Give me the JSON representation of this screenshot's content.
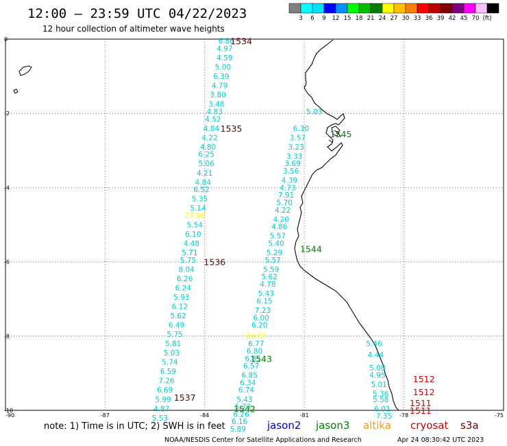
{
  "header": {
    "title": "12:00 – 23:59 UTC 04/22/2023",
    "subtitle": "12 hour collection of altimeter wave heights"
  },
  "scale": {
    "colors": [
      "#808080",
      "#00ffff",
      "#00e0ff",
      "#0000ff",
      "#0090ff",
      "#00ff00",
      "#00c000",
      "#008000",
      "#ffff00",
      "#ffc000",
      "#ff8000",
      "#ff0000",
      "#c00000",
      "#800000",
      "#800080",
      "#ff00ff",
      "#ffc0ff",
      "#000000"
    ],
    "labels": [
      "3",
      "6",
      "9",
      "12",
      "15",
      "18",
      "21",
      "24",
      "27",
      "30",
      "33",
      "36",
      "39",
      "42",
      "45",
      "70",
      "(ft)"
    ]
  },
  "axes": {
    "lat_labels": [
      "0",
      "-2",
      "-4",
      "-6",
      "-8",
      "-10"
    ],
    "lon_labels": [
      "-90",
      "-87",
      "-84",
      "-81",
      "-78",
      "-75"
    ]
  },
  "colors": {
    "jason2": "#0000cc",
    "jason3": "#008000",
    "altika": "#ff9900",
    "cryosat": "#cc0000",
    "s3a": "#660000",
    "normal_swh": "#00cccc",
    "high_swh": "#ffff00"
  },
  "passes": [
    {
      "label": "1534",
      "sat": "s3a",
      "lon": -82.9,
      "lat": -0.05
    },
    {
      "label": "1535",
      "sat": "s3a",
      "lon": -83.2,
      "lat": -2.4
    },
    {
      "label": "1536",
      "sat": "s3a",
      "lon": -83.7,
      "lat": -6.0
    },
    {
      "label": "1537",
      "sat": "s3a",
      "lon": -84.6,
      "lat": -9.65
    },
    {
      "label": "1545",
      "sat": "jason3",
      "lon": -79.9,
      "lat": -2.55
    },
    {
      "label": "1544",
      "sat": "jason3",
      "lon": -80.8,
      "lat": -5.65
    },
    {
      "label": "1543",
      "sat": "jason3",
      "lon": -82.3,
      "lat": -8.6
    },
    {
      "label": "1542",
      "sat": "jason3",
      "lon": -82.8,
      "lat": -9.95
    },
    {
      "label": "1512",
      "sat": "cryosat",
      "lon": -77.4,
      "lat": -9.15
    },
    {
      "label": "1512",
      "sat": "cryosat",
      "lon": -77.4,
      "lat": -9.5
    },
    {
      "label": "1511",
      "sat": "cryosat",
      "lon": -77.5,
      "lat": -9.8
    },
    {
      "label": "1511",
      "sat": "cryosat",
      "lon": -77.5,
      "lat": -10.0
    }
  ],
  "observations": [
    {
      "v": "6.86",
      "lon": -83.35,
      "lat": -0.05
    },
    {
      "v": "4.97",
      "lon": -83.4,
      "lat": -0.25
    },
    {
      "v": "4.59",
      "lon": -83.4,
      "lat": -0.5
    },
    {
      "v": "5.00",
      "lon": -83.45,
      "lat": -0.75
    },
    {
      "v": "6.39",
      "lon": -83.5,
      "lat": -1.0
    },
    {
      "v": "4.79",
      "lon": -83.55,
      "lat": -1.25
    },
    {
      "v": "3.80",
      "lon": -83.6,
      "lat": -1.5
    },
    {
      "v": "3.48",
      "lon": -83.65,
      "lat": -1.75
    },
    {
      "v": "4.83",
      "lon": -83.7,
      "lat": -1.95
    },
    {
      "v": "4.52",
      "lon": -83.75,
      "lat": -2.15
    },
    {
      "v": "4.84",
      "lon": -83.8,
      "lat": -2.4
    },
    {
      "v": "4.22",
      "lon": -83.85,
      "lat": -2.65
    },
    {
      "v": "4.80",
      "lon": -83.9,
      "lat": -2.9
    },
    {
      "v": "6.25",
      "lon": -83.95,
      "lat": -3.1
    },
    {
      "v": "5.06",
      "lon": -83.95,
      "lat": -3.35
    },
    {
      "v": "4.21",
      "lon": -84.0,
      "lat": -3.6
    },
    {
      "v": "4.84",
      "lon": -84.05,
      "lat": -3.85
    },
    {
      "v": "6.52",
      "lon": -84.1,
      "lat": -4.05
    },
    {
      "v": "5.35",
      "lon": -84.15,
      "lat": -4.3
    },
    {
      "v": "5.14",
      "lon": -84.2,
      "lat": -4.55
    },
    {
      "v": "23.96",
      "lon": -84.3,
      "lat": -4.75,
      "high": true
    },
    {
      "v": "5.54",
      "lon": -84.3,
      "lat": -5.0
    },
    {
      "v": "6.10",
      "lon": -84.35,
      "lat": -5.25
    },
    {
      "v": "4.48",
      "lon": -84.4,
      "lat": -5.5
    },
    {
      "v": "5.71",
      "lon": -84.45,
      "lat": -5.75
    },
    {
      "v": "5.75",
      "lon": -84.5,
      "lat": -5.95
    },
    {
      "v": "8.04",
      "lon": -84.55,
      "lat": -6.2
    },
    {
      "v": "6.26",
      "lon": -84.6,
      "lat": -6.45
    },
    {
      "v": "6.24",
      "lon": -84.65,
      "lat": -6.7
    },
    {
      "v": "5.93",
      "lon": -84.7,
      "lat": -6.95
    },
    {
      "v": "6.12",
      "lon": -84.75,
      "lat": -7.2
    },
    {
      "v": "5.62",
      "lon": -84.8,
      "lat": -7.45
    },
    {
      "v": "6.49",
      "lon": -84.85,
      "lat": -7.7
    },
    {
      "v": "5.75",
      "lon": -84.9,
      "lat": -7.95
    },
    {
      "v": "5.81",
      "lon": -84.95,
      "lat": -8.2
    },
    {
      "v": "5.03",
      "lon": -85.0,
      "lat": -8.45
    },
    {
      "v": "5.74",
      "lon": -85.05,
      "lat": -8.7
    },
    {
      "v": "6.59",
      "lon": -85.1,
      "lat": -8.95
    },
    {
      "v": "7.26",
      "lon": -85.15,
      "lat": -9.2
    },
    {
      "v": "6.69",
      "lon": -85.2,
      "lat": -9.45
    },
    {
      "v": "5.99",
      "lon": -85.25,
      "lat": -9.7
    },
    {
      "v": "4.87",
      "lon": -85.3,
      "lat": -9.95
    },
    {
      "v": "5.53",
      "lon": -85.35,
      "lat": -10.2
    },
    {
      "v": "5.03",
      "lon": -80.7,
      "lat": -1.95
    },
    {
      "v": "6.30",
      "lon": -81.1,
      "lat": -2.4
    },
    {
      "v": "3.57",
      "lon": -81.2,
      "lat": -2.65
    },
    {
      "v": "3.23",
      "lon": -81.25,
      "lat": -2.9
    },
    {
      "v": "3.33",
      "lon": -81.3,
      "lat": -3.15
    },
    {
      "v": "3.69",
      "lon": -81.35,
      "lat": -3.35
    },
    {
      "v": "3.56",
      "lon": -81.4,
      "lat": -3.55
    },
    {
      "v": "4.39",
      "lon": -81.45,
      "lat": -3.8
    },
    {
      "v": "4.73",
      "lon": -81.5,
      "lat": -4.0
    },
    {
      "v": "7.91",
      "lon": -81.55,
      "lat": -4.2
    },
    {
      "v": "5.70",
      "lon": -81.6,
      "lat": -4.4
    },
    {
      "v": "4.22",
      "lon": -81.65,
      "lat": -4.6
    },
    {
      "v": "4.20",
      "lon": -81.7,
      "lat": -4.85
    },
    {
      "v": "4.86",
      "lon": -81.75,
      "lat": -5.05
    },
    {
      "v": "5.57",
      "lon": -81.8,
      "lat": -5.3
    },
    {
      "v": "5.40",
      "lon": -81.85,
      "lat": -5.5
    },
    {
      "v": "5.29",
      "lon": -81.9,
      "lat": -5.75
    },
    {
      "v": "5.57",
      "lon": -81.95,
      "lat": -5.95
    },
    {
      "v": "5.59",
      "lon": -82.0,
      "lat": -6.2
    },
    {
      "v": "5.62",
      "lon": -82.05,
      "lat": -6.4
    },
    {
      "v": "4.78",
      "lon": -82.1,
      "lat": -6.6
    },
    {
      "v": "5.43",
      "lon": -82.15,
      "lat": -6.85
    },
    {
      "v": "6.15",
      "lon": -82.2,
      "lat": -7.05
    },
    {
      "v": "7.23",
      "lon": -82.25,
      "lat": -7.3
    },
    {
      "v": "6.00",
      "lon": -82.3,
      "lat": -7.5
    },
    {
      "v": "6.20",
      "lon": -82.35,
      "lat": -7.7
    },
    {
      "v": "20.63",
      "lon": -82.45,
      "lat": -8.0,
      "high": true
    },
    {
      "v": "6.77",
      "lon": -82.45,
      "lat": -8.2
    },
    {
      "v": "6.80",
      "lon": -82.5,
      "lat": -8.4
    },
    {
      "v": "6.85",
      "lon": -82.55,
      "lat": -8.6
    },
    {
      "v": "6.57",
      "lon": -82.6,
      "lat": -8.8
    },
    {
      "v": "6.85",
      "lon": -82.65,
      "lat": -9.05
    },
    {
      "v": "6.34",
      "lon": -82.7,
      "lat": -9.25
    },
    {
      "v": "6.74",
      "lon": -82.75,
      "lat": -9.45
    },
    {
      "v": "5.43",
      "lon": -82.8,
      "lat": -9.7
    },
    {
      "v": "5.73",
      "lon": -82.85,
      "lat": -9.9
    },
    {
      "v": "6.26",
      "lon": -82.9,
      "lat": -10.1
    },
    {
      "v": "6.16",
      "lon": -82.95,
      "lat": -10.3
    },
    {
      "v": "5.89",
      "lon": -83.0,
      "lat": -10.5
    },
    {
      "v": "5.46",
      "lon": -78.9,
      "lat": -8.2
    },
    {
      "v": "4.44",
      "lon": -78.85,
      "lat": -8.5
    },
    {
      "v": "5.08",
      "lon": -78.8,
      "lat": -8.85
    },
    {
      "v": "4.95",
      "lon": -78.8,
      "lat": -9.05
    },
    {
      "v": "5.01",
      "lon": -78.75,
      "lat": -9.3
    },
    {
      "v": "5.36",
      "lon": -78.7,
      "lat": -9.55
    },
    {
      "v": "5.58",
      "lon": -78.7,
      "lat": -9.7
    },
    {
      "v": "6.01",
      "lon": -78.65,
      "lat": -9.95
    },
    {
      "v": "7.35",
      "lon": -78.6,
      "lat": -10.15
    }
  ],
  "notes": {
    "note_text": "note:  1) Time is in UTC;  2) SWH is in feet",
    "sat_labels": {
      "jason2": "jason2",
      "jason3": "jason3",
      "altika": "altika",
      "cryosat": "cryosat",
      "s3a": "s3a"
    }
  },
  "footer": {
    "agency": "NOAA/NESDIS Center for Satellite Applications and Research",
    "timestamp": "Apr 24 08:30:42 UTC 2023"
  }
}
